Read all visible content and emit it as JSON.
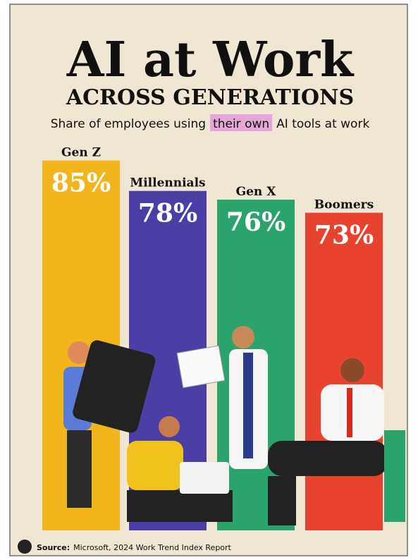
{
  "chart_data": {
    "type": "bar",
    "title": "AI at Work",
    "subtitle": "ACROSS GENERATIONS",
    "description": [
      "Share of employees using",
      "their own",
      "AI tools at work"
    ],
    "categories": [
      "Gen Z",
      "Millennials",
      "Gen X",
      "Boomers"
    ],
    "values": [
      85,
      78,
      76,
      73
    ],
    "value_labels": [
      "85%",
      "78%",
      "76%",
      "73%"
    ],
    "colors": [
      "#f2b51c",
      "#4b3fa6",
      "#2aa36d",
      "#e8432f"
    ],
    "source_label": "Source:",
    "source": "Microsoft, 2024 Work Trend Index Report"
  }
}
